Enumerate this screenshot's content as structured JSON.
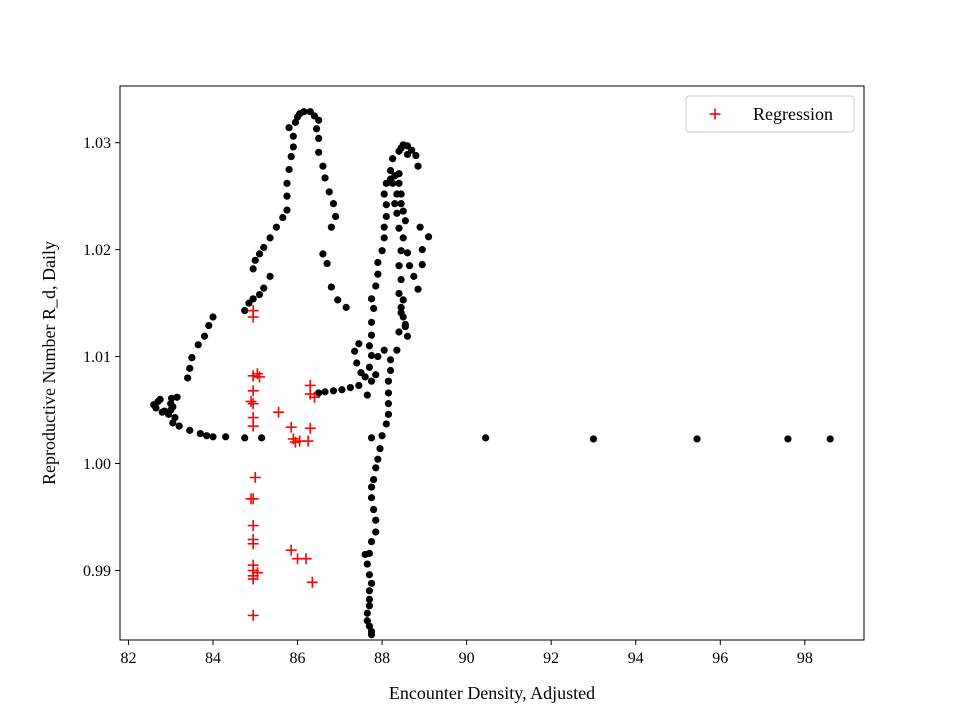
{
  "chart_data": {
    "type": "scatter",
    "title": "",
    "xlabel": "Encounter Density, Adjusted",
    "ylabel": "Reproductive Number R_d, Daily",
    "xlim": [
      81.8,
      99.4
    ],
    "ylim": [
      0.9835,
      1.0353
    ],
    "xticks": [
      82,
      84,
      86,
      88,
      90,
      92,
      94,
      96,
      98
    ],
    "yticks": [
      0.99,
      1.0,
      1.01,
      1.02,
      1.03
    ],
    "ytick_labels": [
      "0.99",
      "1.00",
      "1.01",
      "1.02",
      "1.03"
    ],
    "grid": false,
    "legend": {
      "location": "upper right",
      "entries": [
        "Regression"
      ]
    },
    "series": [
      {
        "marker": "circle",
        "color": "#000000",
        "points": [
          [
            82.6,
            1.0055
          ],
          [
            82.65,
            1.0052
          ],
          [
            82.7,
            1.0058
          ],
          [
            82.75,
            1.006
          ],
          [
            82.8,
            1.0048
          ],
          [
            82.85,
            1.0049
          ],
          [
            82.95,
            1.0046
          ],
          [
            83.0,
            1.005
          ],
          [
            83.0,
            1.0056
          ],
          [
            83.02,
            1.0061
          ],
          [
            83.05,
            1.0053
          ],
          [
            83.1,
            1.0043
          ],
          [
            83.05,
            1.0038
          ],
          [
            83.15,
            1.0062
          ],
          [
            83.2,
            1.0035
          ],
          [
            83.4,
            1.008
          ],
          [
            83.45,
            1.0089
          ],
          [
            83.5,
            1.0099
          ],
          [
            83.65,
            1.0111
          ],
          [
            83.8,
            1.0119
          ],
          [
            83.9,
            1.0129
          ],
          [
            84.0,
            1.0137
          ],
          [
            83.45,
            1.0031
          ],
          [
            83.7,
            1.0028
          ],
          [
            83.85,
            1.0026
          ],
          [
            84.0,
            1.0025
          ],
          [
            84.3,
            1.0025
          ],
          [
            84.75,
            1.0024
          ],
          [
            85.15,
            1.0024
          ],
          [
            84.75,
            1.0143
          ],
          [
            84.85,
            1.015
          ],
          [
            84.95,
            1.0154
          ],
          [
            85.1,
            1.0158
          ],
          [
            85.2,
            1.0164
          ],
          [
            85.35,
            1.0175
          ],
          [
            84.95,
            1.0182
          ],
          [
            85.0,
            1.019
          ],
          [
            85.1,
            1.0196
          ],
          [
            85.2,
            1.0202
          ],
          [
            85.35,
            1.0211
          ],
          [
            85.5,
            1.0221
          ],
          [
            85.65,
            1.023
          ],
          [
            85.75,
            1.0237
          ],
          [
            85.75,
            1.025
          ],
          [
            85.75,
            1.0262
          ],
          [
            85.8,
            1.0275
          ],
          [
            85.85,
            1.0287
          ],
          [
            85.9,
            1.0296
          ],
          [
            85.9,
            1.0306
          ],
          [
            85.8,
            1.0314
          ],
          [
            85.95,
            1.0319
          ],
          [
            86.0,
            1.0324
          ],
          [
            86.05,
            1.0327
          ],
          [
            86.15,
            1.0329
          ],
          [
            86.3,
            1.0329
          ],
          [
            86.4,
            1.0325
          ],
          [
            86.5,
            1.0321
          ],
          [
            86.45,
            1.0313
          ],
          [
            86.5,
            1.0304
          ],
          [
            86.5,
            1.0291
          ],
          [
            86.6,
            1.0278
          ],
          [
            86.65,
            1.0267
          ],
          [
            86.75,
            1.0254
          ],
          [
            86.85,
            1.0243
          ],
          [
            86.9,
            1.0231
          ],
          [
            86.8,
            1.0221
          ],
          [
            86.6,
            1.0196
          ],
          [
            86.7,
            1.0187
          ],
          [
            86.8,
            1.0165
          ],
          [
            86.95,
            1.0153
          ],
          [
            87.15,
            1.0146
          ],
          [
            86.5,
            1.0066
          ],
          [
            86.65,
            1.0067
          ],
          [
            86.85,
            1.0068
          ],
          [
            87.05,
            1.0069
          ],
          [
            87.25,
            1.0071
          ],
          [
            87.45,
            1.0073
          ],
          [
            87.6,
            1.0081
          ],
          [
            87.7,
            1.009
          ],
          [
            87.75,
            1.0101
          ],
          [
            87.7,
            1.011
          ],
          [
            87.75,
            1.012
          ],
          [
            87.75,
            1.0132
          ],
          [
            87.8,
            1.0145
          ],
          [
            87.75,
            1.0154
          ],
          [
            87.85,
            1.0166
          ],
          [
            87.9,
            1.0177
          ],
          [
            87.9,
            1.0188
          ],
          [
            88.0,
            1.0199
          ],
          [
            88.05,
            1.0211
          ],
          [
            88.05,
            1.0221
          ],
          [
            88.1,
            1.0231
          ],
          [
            88.1,
            1.0242
          ],
          [
            88.05,
            1.0252
          ],
          [
            88.1,
            1.0262
          ],
          [
            88.2,
            1.0266
          ],
          [
            88.3,
            1.0269
          ],
          [
            88.4,
            1.0271
          ],
          [
            88.4,
            1.0262
          ],
          [
            88.45,
            1.0252
          ],
          [
            88.45,
            1.0243
          ],
          [
            88.5,
            1.0236
          ],
          [
            88.55,
            1.0227
          ],
          [
            88.45,
            1.0199
          ],
          [
            88.4,
            1.0185
          ],
          [
            88.45,
            1.0172
          ],
          [
            88.4,
            1.0159
          ],
          [
            88.45,
            1.0146
          ],
          [
            88.5,
            1.0137
          ],
          [
            88.55,
            1.0128
          ],
          [
            88.4,
            1.0123
          ],
          [
            88.35,
            1.0106
          ],
          [
            88.2,
            1.0097
          ],
          [
            88.2,
            1.0087
          ],
          [
            88.15,
            1.0077
          ],
          [
            88.15,
            1.0066
          ],
          [
            88.15,
            1.0056
          ],
          [
            88.15,
            1.0046
          ],
          [
            88.1,
            1.0037
          ],
          [
            88.0,
            1.0026
          ],
          [
            87.95,
            1.0014
          ],
          [
            87.9,
            1.0004
          ],
          [
            87.85,
            0.9996
          ],
          [
            87.8,
            0.9985
          ],
          [
            87.75,
            0.9978
          ],
          [
            87.75,
            0.9968
          ],
          [
            87.8,
            0.9957
          ],
          [
            87.85,
            0.9947
          ],
          [
            87.85,
            0.9936
          ],
          [
            87.75,
            0.9927
          ],
          [
            87.7,
            0.9916
          ],
          [
            87.6,
            0.9915
          ],
          [
            87.65,
            0.9906
          ],
          [
            87.7,
            0.9896
          ],
          [
            87.75,
            0.9888
          ],
          [
            87.7,
            0.9881
          ],
          [
            87.7,
            0.9873
          ],
          [
            87.7,
            0.9867
          ],
          [
            87.65,
            0.986
          ],
          [
            87.65,
            0.9853
          ],
          [
            87.7,
            0.9848
          ],
          [
            87.75,
            0.9843
          ],
          [
            87.75,
            0.984
          ],
          [
            87.75,
            1.0024
          ],
          [
            87.4,
            1.0094
          ],
          [
            87.35,
            1.0105
          ],
          [
            87.45,
            1.0112
          ],
          [
            87.65,
            1.0064
          ],
          [
            87.75,
            1.0077
          ],
          [
            87.5,
            1.0085
          ],
          [
            87.85,
            1.0083
          ],
          [
            87.9,
            1.01
          ],
          [
            88.05,
            1.0106
          ],
          [
            88.45,
            1.0295
          ],
          [
            88.5,
            1.0298
          ],
          [
            88.6,
            1.0297
          ],
          [
            88.7,
            1.0293
          ],
          [
            88.8,
            1.0288
          ],
          [
            88.85,
            1.0278
          ],
          [
            88.6,
            1.0289
          ],
          [
            88.4,
            1.0292
          ],
          [
            88.25,
            1.0285
          ],
          [
            88.2,
            1.0274
          ],
          [
            88.25,
            1.0262
          ],
          [
            88.35,
            1.0252
          ],
          [
            88.3,
            1.0243
          ],
          [
            88.35,
            1.0234
          ],
          [
            88.4,
            1.022
          ],
          [
            88.5,
            1.0211
          ],
          [
            88.6,
            1.0197
          ],
          [
            88.65,
            1.0185
          ],
          [
            88.75,
            1.0175
          ],
          [
            88.85,
            1.0163
          ],
          [
            88.95,
            1.0186
          ],
          [
            88.95,
            1.02
          ],
          [
            89.1,
            1.0212
          ],
          [
            88.9,
            1.0221
          ],
          [
            88.5,
            1.0153
          ],
          [
            88.45,
            1.0141
          ],
          [
            88.55,
            1.013
          ],
          [
            88.6,
            1.0119
          ],
          [
            90.45,
            1.0024
          ],
          [
            93.0,
            1.0023
          ],
          [
            95.45,
            1.0023
          ],
          [
            97.6,
            1.0023
          ],
          [
            98.6,
            1.0023
          ]
        ]
      },
      {
        "name": "Regression",
        "marker": "plus",
        "color": "#ff0000",
        "points": [
          [
            84.95,
            1.0143
          ],
          [
            84.95,
            1.0137
          ],
          [
            84.95,
            1.0082
          ],
          [
            85.05,
            1.0084
          ],
          [
            85.1,
            1.0081
          ],
          [
            84.95,
            1.0068
          ],
          [
            84.9,
            1.0058
          ],
          [
            84.95,
            1.0056
          ],
          [
            84.95,
            1.0043
          ],
          [
            84.95,
            1.0035
          ],
          [
            85.55,
            1.0048
          ],
          [
            85.85,
            1.0034
          ],
          [
            85.9,
            1.0023
          ],
          [
            85.95,
            1.002
          ],
          [
            86.05,
            1.0021
          ],
          [
            86.25,
            1.0021
          ],
          [
            86.3,
            1.0073
          ],
          [
            86.3,
            1.0065
          ],
          [
            86.4,
            1.0062
          ],
          [
            86.3,
            1.0033
          ],
          [
            85.0,
            0.9987
          ],
          [
            84.95,
            0.9967
          ],
          [
            84.9,
            0.9967
          ],
          [
            84.95,
            0.9942
          ],
          [
            84.95,
            0.9929
          ],
          [
            84.95,
            0.9925
          ],
          [
            84.95,
            0.9905
          ],
          [
            84.95,
            0.99
          ],
          [
            84.95,
            0.9895
          ],
          [
            85.05,
            0.9898
          ],
          [
            84.95,
            0.9892
          ],
          [
            85.85,
            0.9919
          ],
          [
            86.0,
            0.9911
          ],
          [
            86.2,
            0.9911
          ],
          [
            86.35,
            0.9889
          ],
          [
            84.95,
            0.9858
          ]
        ]
      }
    ]
  }
}
